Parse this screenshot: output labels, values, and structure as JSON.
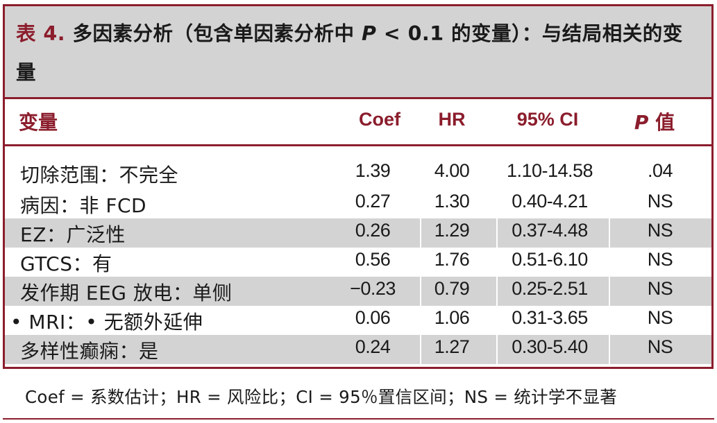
{
  "title": {
    "label": "表 4.",
    "text_before_p": " 多因素分析（包含单因素分析中 ",
    "p": "P",
    "text_after_p": " < 0.1 的变量）：与结局相关的变量"
  },
  "columns": {
    "variable": "变量",
    "coef": "Coef",
    "hr": "HR",
    "ci": "95% CI",
    "p_italic": "P",
    "p_rest": " 值"
  },
  "rows": [
    {
      "variable": "切除范围：不完全",
      "coef": "1.39",
      "hr": "4.00",
      "ci": "1.10-14.58",
      "p": ".04"
    },
    {
      "variable": "病因：非 FCD",
      "coef": "0.27",
      "hr": "1.30",
      "ci": "0.40-4.21",
      "p": "NS"
    },
    {
      "variable": "EZ：广泛性",
      "coef": "0.26",
      "hr": "1.29",
      "ci": "0.37-4.48",
      "p": "NS"
    },
    {
      "variable": "GTCS：有",
      "coef": "0.56",
      "hr": "1.76",
      "ci": "0.51-6.10",
      "p": "NS"
    },
    {
      "variable": "发作期 EEG 放电：单侧",
      "coef": "−0.23",
      "hr": "0.79",
      "ci": "0.25-2.51",
      "p": "NS"
    },
    {
      "variable": "• MRI：• 无额外延伸",
      "coef": "0.06",
      "hr": "1.06",
      "ci": "0.31-3.65",
      "p": "NS"
    },
    {
      "variable": "多样性癫痫：是",
      "coef": "0.24",
      "hr": "1.27",
      "ci": "0.30-5.40",
      "p": "NS"
    }
  ],
  "footnote": "Coef = 系数估计；HR = 风险比；CI = 95％置信区间；NS = 统计学不显著",
  "colors": {
    "accent": "#8b1d2c",
    "shade": "#d4d3d3"
  }
}
